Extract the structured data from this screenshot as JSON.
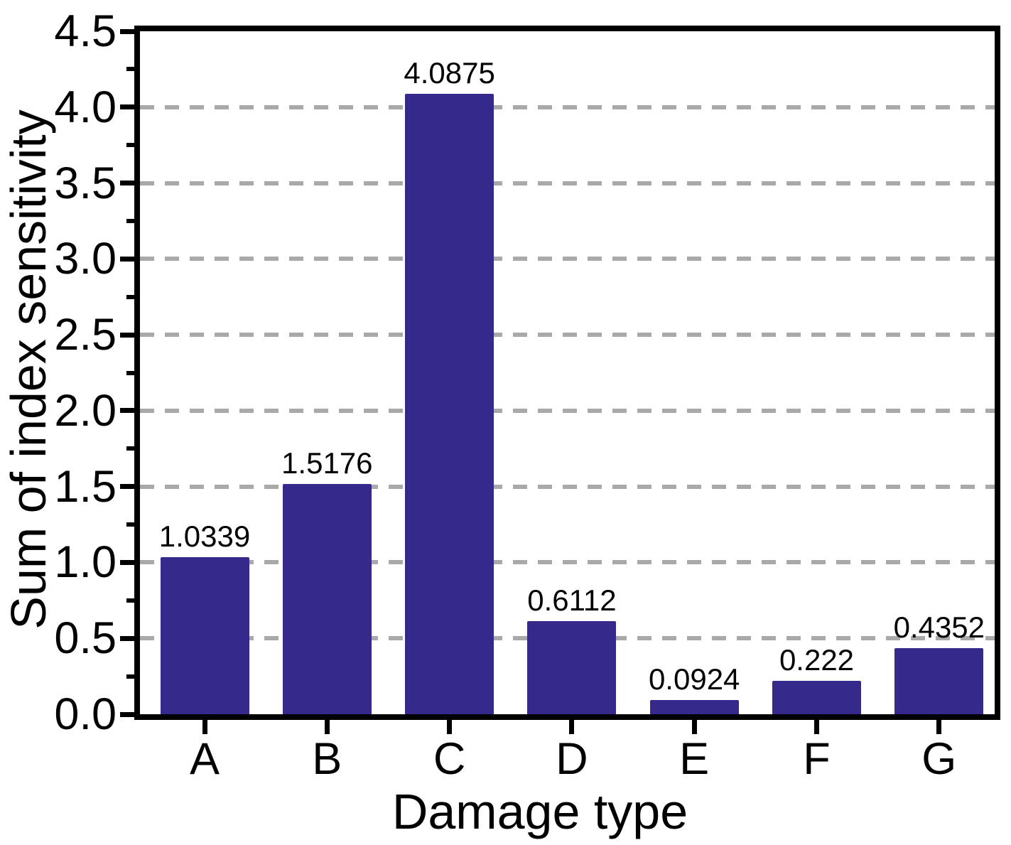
{
  "chart_data": {
    "type": "bar",
    "categories": [
      "A",
      "B",
      "C",
      "D",
      "E",
      "F",
      "G"
    ],
    "values": [
      1.0339,
      1.5176,
      4.0875,
      0.6112,
      0.0924,
      0.222,
      0.4352
    ],
    "value_labels": [
      "1.0339",
      "1.5176",
      "4.0875",
      "0.6112",
      "0.0924",
      "0.222",
      "0.4352"
    ],
    "xlabel": "Damage type",
    "ylabel": "Sum of index sensitivity",
    "ylim": [
      0,
      4.5
    ],
    "ytick_step": 0.5,
    "ytick_minor_step": 0.25,
    "ytick_labels": [
      "0.0",
      "0.5",
      "1.0",
      "1.5",
      "2.0",
      "2.5",
      "3.0",
      "3.5",
      "4.0",
      "4.5"
    ],
    "grid": {
      "axis": "y",
      "style": "dashed",
      "at_major_ticks": true
    },
    "legend": "none",
    "colors": {
      "bar": "#35298C",
      "grid": "#A9A9A9",
      "axis": "#000000",
      "text": "#000000",
      "background": "#FFFFFF"
    }
  }
}
